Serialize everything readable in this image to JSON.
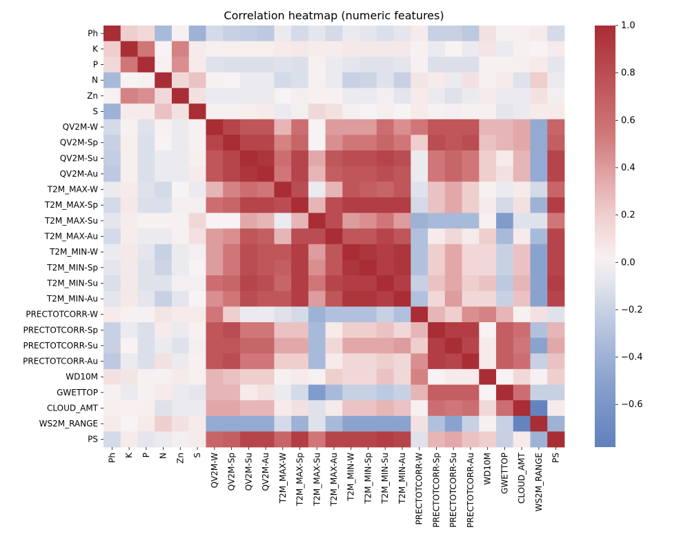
{
  "chart_data": {
    "type": "heatmap",
    "title": "Correlation heatmap (numeric features)",
    "xlabel": "",
    "ylabel": "",
    "labels": [
      "Ph",
      "K",
      "P",
      "N",
      "Zn",
      "S",
      "QV2M-W",
      "QV2M-Sp",
      "QV2M-Su",
      "QV2M-Au",
      "T2M_MAX-W",
      "T2M_MAX-Sp",
      "T2M_MAX-Su",
      "T2M_MAX-Au",
      "T2M_MIN-W",
      "T2M_MIN-Sp",
      "T2M_MIN-Su",
      "T2M_MIN-Au",
      "PRECTOTCORR-W",
      "PRECTOTCORR-Sp",
      "PRECTOTCORR-Su",
      "PRECTOTCORR-Au",
      "WD10M",
      "GWETTOP",
      "CLOUD_AMT",
      "WS2M_RANGE",
      "PS"
    ],
    "x_tick_labels": [
      "Ph",
      "K",
      "P",
      "N",
      "Zn",
      "S",
      "QV2M-W",
      "QV2M-Sp",
      "QV2M-Su",
      "QV2M-Au",
      "T2M_MAX-W",
      "T2M_MAX-Sp",
      "T2M_MAX-Su",
      "T2M_MAX-Au",
      "T2M_MIN-W",
      "T2M_MIN-Sp",
      "T2M_MIN-Su",
      "T2M_MIN-Au",
      "PRECTOTCORR-W",
      "PRECTOTCORR-Sp",
      "PRECTOTCORR-Su",
      "PRECTOTCORR-Au",
      "WD10M",
      "GWETTOP",
      "CLOUD_AMT",
      "WS2M_RANGE",
      "PS"
    ],
    "colormap": "vlag",
    "vmin": -0.78,
    "vmax": 1.0,
    "colorbar_ticks": [
      "1.0",
      "0.8",
      "0.6",
      "0.4",
      "0.2",
      "0.0",
      "−0.2",
      "−0.4",
      "−0.6"
    ],
    "colorbar_tick_values": [
      1.0,
      0.8,
      0.6,
      0.4,
      0.2,
      0.0,
      -0.2,
      -0.4,
      -0.6
    ],
    "matrix": [
      [
        1.0,
        0.2,
        0.15,
        -0.35,
        0.02,
        -0.4,
        -0.15,
        -0.2,
        -0.22,
        -0.25,
        -0.05,
        -0.15,
        -0.08,
        -0.15,
        -0.05,
        -0.08,
        -0.12,
        -0.08,
        0.05,
        -0.2,
        -0.2,
        -0.25,
        0.1,
        0.02,
        0.03,
        0.05,
        -0.15
      ],
      [
        0.2,
        1.0,
        0.55,
        0.0,
        0.5,
        0.05,
        0.02,
        0.03,
        0.03,
        0.03,
        0.05,
        0.06,
        0.04,
        0.04,
        0.06,
        0.06,
        0.06,
        0.06,
        0.02,
        -0.05,
        0.01,
        -0.05,
        0.08,
        -0.05,
        0.02,
        0.0,
        0.05
      ],
      [
        0.15,
        0.55,
        1.0,
        0.02,
        0.45,
        0.05,
        -0.1,
        -0.12,
        -0.12,
        -0.12,
        -0.1,
        -0.12,
        0.02,
        -0.05,
        -0.08,
        -0.1,
        -0.1,
        -0.08,
        0.02,
        -0.12,
        -0.12,
        -0.12,
        0.02,
        0.02,
        0.03,
        0.05,
        -0.08
      ],
      [
        -0.35,
        0.0,
        0.02,
        1.0,
        0.15,
        0.25,
        0.02,
        0.0,
        -0.05,
        -0.05,
        -0.15,
        -0.12,
        0.02,
        -0.05,
        -0.2,
        -0.18,
        -0.1,
        -0.2,
        0.08,
        0.05,
        -0.05,
        0.1,
        0.02,
        0.05,
        -0.1,
        0.2,
        -0.05
      ],
      [
        0.02,
        0.5,
        0.45,
        0.15,
        1.0,
        0.1,
        -0.05,
        -0.05,
        -0.05,
        -0.05,
        0.0,
        -0.02,
        0.02,
        0.02,
        -0.05,
        -0.05,
        -0.02,
        -0.08,
        0.05,
        -0.05,
        -0.1,
        -0.05,
        0.05,
        -0.05,
        -0.05,
        0.1,
        -0.02
      ],
      [
        -0.4,
        0.05,
        0.05,
        0.25,
        0.1,
        1.0,
        0.02,
        0.02,
        0.03,
        0.05,
        -0.05,
        -0.02,
        0.15,
        0.1,
        -0.02,
        0.0,
        -0.02,
        0.0,
        0.05,
        0.02,
        -0.02,
        0.02,
        0.02,
        -0.08,
        -0.05,
        0.05,
        0.05
      ],
      [
        -0.15,
        0.02,
        -0.1,
        0.02,
        -0.05,
        0.02,
        1.0,
        0.85,
        0.75,
        0.75,
        0.3,
        0.6,
        0.0,
        0.4,
        0.4,
        0.4,
        0.6,
        0.45,
        0.55,
        0.75,
        0.75,
        0.75,
        0.3,
        0.3,
        0.35,
        -0.45,
        0.65
      ],
      [
        -0.2,
        0.03,
        -0.12,
        0.0,
        -0.05,
        0.02,
        0.85,
        1.0,
        0.85,
        0.85,
        0.5,
        0.65,
        0.0,
        0.45,
        0.55,
        0.55,
        0.65,
        0.55,
        0.2,
        0.8,
        0.75,
        0.8,
        0.25,
        0.3,
        0.35,
        -0.45,
        0.7
      ],
      [
        -0.22,
        0.03,
        -0.12,
        -0.05,
        -0.05,
        0.03,
        0.75,
        0.85,
        1.0,
        0.95,
        0.6,
        0.85,
        0.35,
        0.75,
        0.8,
        0.8,
        0.85,
        0.8,
        -0.05,
        0.55,
        0.65,
        0.55,
        0.2,
        0.05,
        0.3,
        -0.45,
        0.85
      ],
      [
        -0.25,
        0.03,
        -0.12,
        -0.05,
        -0.05,
        0.05,
        0.75,
        0.85,
        0.95,
        1.0,
        0.55,
        0.85,
        0.3,
        0.7,
        0.75,
        0.75,
        0.8,
        0.75,
        -0.05,
        0.55,
        0.65,
        0.55,
        0.2,
        0.1,
        0.3,
        -0.45,
        0.85
      ],
      [
        -0.05,
        0.05,
        -0.1,
        -0.15,
        0.0,
        -0.05,
        0.3,
        0.5,
        0.6,
        0.55,
        1.0,
        0.8,
        -0.05,
        0.3,
        0.75,
        0.7,
        0.65,
        0.75,
        -0.1,
        0.25,
        0.35,
        0.2,
        0.02,
        -0.05,
        0.05,
        -0.15,
        0.65
      ],
      [
        -0.15,
        0.06,
        -0.12,
        -0.12,
        -0.02,
        -0.02,
        0.6,
        0.65,
        0.85,
        0.85,
        0.8,
        1.0,
        0.3,
        0.8,
        0.9,
        0.9,
        0.9,
        0.9,
        -0.15,
        0.25,
        0.35,
        0.2,
        0.05,
        -0.15,
        0.1,
        -0.4,
        0.9
      ],
      [
        -0.08,
        0.04,
        0.02,
        0.02,
        0.02,
        0.15,
        0.0,
        0.0,
        0.35,
        0.3,
        -0.05,
        0.3,
        1.0,
        0.8,
        0.4,
        0.45,
        0.55,
        0.4,
        -0.4,
        -0.35,
        -0.35,
        -0.35,
        0.02,
        -0.55,
        -0.1,
        -0.1,
        0.55
      ],
      [
        -0.15,
        0.04,
        -0.05,
        -0.05,
        0.02,
        0.1,
        0.4,
        0.45,
        0.75,
        0.7,
        0.3,
        0.8,
        0.8,
        1.0,
        0.75,
        0.75,
        0.85,
        0.75,
        -0.3,
        0.05,
        0.15,
        0.05,
        0.2,
        -0.35,
        0.05,
        -0.35,
        0.85
      ],
      [
        -0.05,
        0.06,
        -0.08,
        -0.2,
        -0.05,
        -0.02,
        0.4,
        0.55,
        0.8,
        0.75,
        0.75,
        0.9,
        0.4,
        0.75,
        1.0,
        0.95,
        0.9,
        0.95,
        -0.3,
        0.2,
        0.35,
        0.15,
        0.15,
        -0.2,
        0.25,
        -0.5,
        0.85
      ],
      [
        -0.08,
        0.06,
        -0.1,
        -0.18,
        -0.05,
        0.0,
        0.4,
        0.55,
        0.8,
        0.75,
        0.7,
        0.9,
        0.45,
        0.75,
        0.95,
        1.0,
        0.9,
        0.95,
        -0.3,
        0.2,
        0.35,
        0.15,
        0.15,
        -0.2,
        0.25,
        -0.5,
        0.85
      ],
      [
        -0.12,
        0.06,
        -0.1,
        -0.1,
        -0.02,
        -0.02,
        0.6,
        0.65,
        0.85,
        0.8,
        0.65,
        0.9,
        0.55,
        0.85,
        0.9,
        0.9,
        1.0,
        0.9,
        -0.2,
        0.25,
        0.35,
        0.2,
        0.25,
        -0.25,
        0.3,
        -0.5,
        0.9
      ],
      [
        -0.08,
        0.06,
        -0.08,
        -0.2,
        -0.08,
        0.0,
        0.45,
        0.55,
        0.8,
        0.75,
        0.75,
        0.9,
        0.4,
        0.75,
        0.95,
        0.95,
        0.9,
        1.0,
        -0.3,
        0.15,
        0.4,
        0.15,
        0.15,
        -0.2,
        0.25,
        -0.5,
        0.85
      ],
      [
        0.05,
        0.02,
        0.02,
        0.08,
        0.05,
        0.05,
        0.55,
        0.2,
        -0.05,
        -0.05,
        -0.1,
        -0.15,
        -0.4,
        -0.3,
        -0.3,
        -0.3,
        -0.2,
        -0.3,
        1.0,
        0.3,
        0.2,
        0.45,
        0.5,
        0.3,
        0.02,
        0.1,
        -0.1
      ],
      [
        -0.2,
        -0.05,
        -0.12,
        0.05,
        -0.05,
        0.02,
        0.75,
        0.8,
        0.55,
        0.55,
        0.25,
        0.25,
        -0.35,
        0.05,
        0.2,
        0.2,
        0.25,
        0.15,
        0.3,
        1.0,
        0.9,
        0.9,
        0.0,
        0.7,
        0.6,
        -0.3,
        0.3
      ],
      [
        -0.2,
        0.01,
        -0.12,
        -0.05,
        -0.1,
        -0.02,
        0.75,
        0.75,
        0.65,
        0.65,
        0.35,
        0.35,
        -0.35,
        0.15,
        0.35,
        0.35,
        0.35,
        0.4,
        0.2,
        0.9,
        1.0,
        0.85,
        0.05,
        0.7,
        0.55,
        -0.5,
        0.35
      ],
      [
        -0.25,
        -0.05,
        -0.12,
        0.1,
        -0.05,
        0.02,
        0.75,
        0.8,
        0.55,
        0.55,
        0.2,
        0.2,
        -0.35,
        0.05,
        0.15,
        0.15,
        0.2,
        0.15,
        0.45,
        0.9,
        0.85,
        1.0,
        0.05,
        0.7,
        0.6,
        -0.2,
        0.25
      ],
      [
        0.1,
        0.08,
        0.02,
        0.02,
        0.05,
        0.02,
        0.3,
        0.25,
        0.2,
        0.2,
        0.02,
        0.05,
        0.02,
        0.2,
        0.15,
        0.15,
        0.25,
        0.15,
        0.5,
        0.0,
        0.05,
        0.05,
        1.0,
        0.0,
        0.15,
        0.02,
        0.2
      ],
      [
        0.02,
        -0.05,
        0.02,
        0.05,
        -0.05,
        -0.08,
        0.3,
        0.3,
        0.05,
        0.1,
        -0.05,
        -0.15,
        -0.55,
        -0.35,
        -0.2,
        -0.2,
        -0.25,
        -0.2,
        0.3,
        0.7,
        0.7,
        0.7,
        0.0,
        1.0,
        0.6,
        -0.2,
        -0.2
      ],
      [
        0.03,
        0.02,
        0.03,
        -0.1,
        -0.05,
        -0.05,
        0.35,
        0.35,
        0.3,
        0.3,
        0.05,
        0.1,
        -0.1,
        0.05,
        0.25,
        0.25,
        0.3,
        0.25,
        0.02,
        0.6,
        0.55,
        0.6,
        0.15,
        0.6,
        1.0,
        -0.75,
        0.05
      ],
      [
        0.05,
        0.0,
        0.05,
        0.2,
        0.1,
        0.05,
        -0.45,
        -0.45,
        -0.45,
        -0.45,
        -0.15,
        -0.4,
        -0.1,
        -0.35,
        -0.5,
        -0.5,
        -0.5,
        -0.5,
        0.1,
        -0.3,
        -0.5,
        -0.2,
        0.02,
        -0.2,
        -0.75,
        1.0,
        -0.4
      ],
      [
        -0.15,
        0.05,
        -0.08,
        -0.05,
        -0.02,
        0.05,
        0.65,
        0.7,
        0.85,
        0.85,
        0.65,
        0.9,
        0.55,
        0.85,
        0.85,
        0.85,
        0.9,
        0.85,
        -0.1,
        0.3,
        0.35,
        0.25,
        0.2,
        -0.2,
        0.05,
        -0.4,
        1.0
      ]
    ]
  }
}
